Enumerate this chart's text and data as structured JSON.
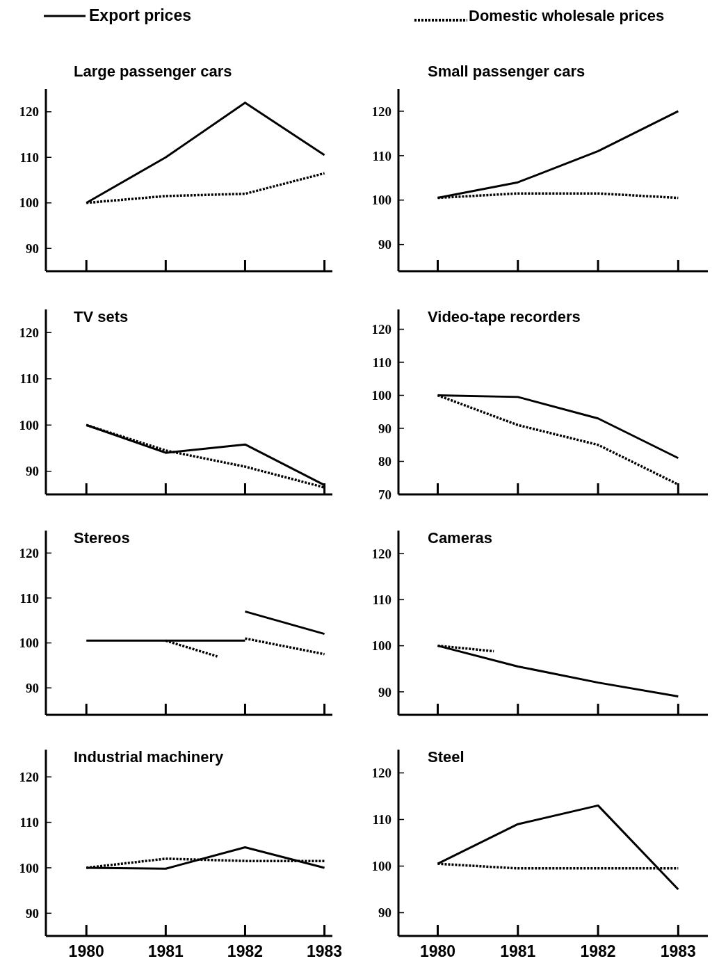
{
  "chart_data": [
    {
      "type": "line",
      "title": "Large passenger cars",
      "legend": "top",
      "xlim": [
        1979.49,
        1983.1
      ],
      "xticks": [
        1980,
        1981,
        1982,
        1983
      ],
      "ylim": [
        85,
        125
      ],
      "yticks": [
        90,
        100,
        110,
        120
      ],
      "tick_labels": "y",
      "grid": false,
      "x": [
        1980,
        1981,
        1982,
        1983
      ],
      "series": [
        {
          "name": "Export prices",
          "color": "#000000",
          "line_style": "solid",
          "values": [
            100,
            110,
            122,
            110.5
          ]
        },
        {
          "name": "Domestic wholesale prices",
          "color": "#000000",
          "line_style": "dotted",
          "values": [
            100,
            101.5,
            102,
            106.5
          ]
        }
      ]
    },
    {
      "type": "line",
      "title": "Small passenger cars",
      "xlim": [
        1979.51,
        1983.37
      ],
      "xticks": [
        1980,
        1981,
        1982,
        1983
      ],
      "ylim": [
        84,
        125
      ],
      "yticks": [
        90,
        100,
        110,
        120
      ],
      "tick_labels": "y",
      "grid": false,
      "x": [
        1980,
        1981,
        1982,
        1983
      ],
      "series": [
        {
          "color": "#000000",
          "line_style": "solid",
          "values": [
            100.5,
            104,
            111,
            120
          ]
        },
        {
          "color": "#000000",
          "line_style": "dotted",
          "values": [
            100.5,
            101.5,
            101.5,
            100.5
          ]
        }
      ]
    },
    {
      "type": "line",
      "title": "TV sets",
      "xlim": [
        1979.49,
        1983.1
      ],
      "xticks": [
        1980,
        1981,
        1982,
        1983
      ],
      "ylim": [
        85,
        125
      ],
      "yticks": [
        90,
        100,
        110,
        120
      ],
      "tick_labels": "y",
      "grid": false,
      "x": [
        1980,
        1981,
        1982,
        1983
      ],
      "series": [
        {
          "color": "#000000",
          "line_style": "solid",
          "values": [
            100,
            94,
            95.8,
            87
          ]
        },
        {
          "color": "#000000",
          "line_style": "dotted",
          "values": [
            100,
            94.5,
            91,
            86.5
          ]
        }
      ]
    },
    {
      "type": "line",
      "title": "Video-tape recorders",
      "xlim": [
        1979.51,
        1983.37
      ],
      "xticks": [
        1980,
        1981,
        1982,
        1983
      ],
      "ylim": [
        70,
        126
      ],
      "yticks": [
        70,
        80,
        90,
        100,
        110,
        120
      ],
      "tick_labels": "y",
      "grid": false,
      "x": [
        1980,
        1981,
        1982,
        1983
      ],
      "series": [
        {
          "color": "#000000",
          "line_style": "solid",
          "values": [
            100,
            99.5,
            93,
            81
          ]
        },
        {
          "color": "#000000",
          "line_style": "dotted",
          "values": [
            100,
            91,
            85,
            73
          ]
        }
      ]
    },
    {
      "type": "line",
      "title": "Stereos",
      "xlim": [
        1979.49,
        1983.1
      ],
      "xticks": [
        1980,
        1981,
        1982,
        1983
      ],
      "ylim": [
        84,
        125
      ],
      "yticks": [
        90,
        100,
        110,
        120
      ],
      "tick_labels": "y",
      "grid": false,
      "series": [
        {
          "color": "#000000",
          "line_style": "solid",
          "x": [
            1980,
            1981,
            1982,
            null,
            1982,
            1983
          ],
          "values": [
            100.5,
            100.5,
            100.5,
            null,
            107,
            102
          ]
        },
        {
          "color": "#000000",
          "line_style": "dotted",
          "x": [
            1981,
            1981.65,
            null,
            1982,
            1983
          ],
          "values": [
            100.5,
            97,
            null,
            101,
            97.5
          ]
        }
      ]
    },
    {
      "type": "line",
      "title": "Cameras",
      "xlim": [
        1979.51,
        1983.37
      ],
      "xticks": [
        1980,
        1981,
        1982,
        1983
      ],
      "ylim": [
        85,
        125
      ],
      "yticks": [
        90,
        100,
        110,
        120
      ],
      "tick_labels": "y",
      "grid": false,
      "series": [
        {
          "color": "#000000",
          "line_style": "solid",
          "x": [
            1980,
            1981,
            1982,
            1983
          ],
          "values": [
            100,
            95.5,
            92,
            89
          ]
        },
        {
          "color": "#000000",
          "line_style": "dotted",
          "x": [
            1980,
            1980.7
          ],
          "values": [
            100,
            98.8
          ]
        }
      ]
    },
    {
      "type": "line",
      "title": "Industrial machinery",
      "xlim": [
        1979.49,
        1983.1
      ],
      "xticks": [
        1980,
        1981,
        1982,
        1983
      ],
      "ylim": [
        85,
        126
      ],
      "yticks": [
        90,
        100,
        110,
        120
      ],
      "grid": false,
      "x": [
        1980,
        1981,
        1982,
        1983
      ],
      "series": [
        {
          "color": "#000000",
          "line_style": "solid",
          "values": [
            100,
            99.8,
            104.5,
            100
          ]
        },
        {
          "color": "#000000",
          "line_style": "dotted",
          "values": [
            100,
            102,
            101.5,
            101.5
          ]
        }
      ]
    },
    {
      "type": "line",
      "title": "Steel",
      "xlim": [
        1979.51,
        1983.37
      ],
      "xticks": [
        1980,
        1981,
        1982,
        1983
      ],
      "ylim": [
        85,
        125
      ],
      "yticks": [
        90,
        100,
        110,
        120
      ],
      "grid": false,
      "x": [
        1980,
        1981,
        1982,
        1983
      ],
      "series": [
        {
          "color": "#000000",
          "line_style": "solid",
          "values": [
            100.5,
            109,
            113,
            95
          ]
        },
        {
          "color": "#000000",
          "line_style": "dotted",
          "values": [
            100.5,
            99.5,
            99.5,
            99.5
          ]
        }
      ]
    }
  ]
}
